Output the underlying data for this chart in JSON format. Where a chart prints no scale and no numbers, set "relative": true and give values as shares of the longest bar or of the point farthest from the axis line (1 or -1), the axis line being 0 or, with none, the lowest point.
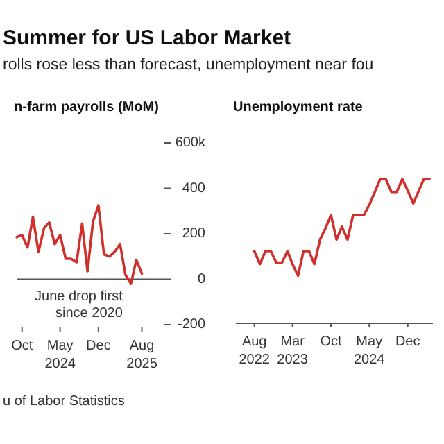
{
  "chart_data": [
    {
      "type": "other",
      "title": "Summer for US Labor Market",
      "subtitle": "rolls rose less than forecast, unemployment near fou",
      "annotations": [
        "u of Labor Statistics"
      ]
    },
    {
      "type": "line",
      "title": "n-farm payrolls (MoM)",
      "x": [
        "2023-09",
        "2023-10",
        "2023-11",
        "2023-12",
        "2024-01",
        "2024-02",
        "2024-03",
        "2024-04",
        "2024-05",
        "2024-06",
        "2024-07",
        "2024-08",
        "2024-09",
        "2024-10",
        "2024-11",
        "2024-12",
        "2025-01",
        "2025-02",
        "2025-03",
        "2025-04",
        "2025-05",
        "2025-06",
        "2025-07",
        "2025-08"
      ],
      "series": [
        {
          "color": "#d0302c",
          "values": [
            185,
            195,
            140,
            275,
            120,
            225,
            250,
            155,
            195,
            90,
            90,
            75,
            245,
            35,
            255,
            325,
            110,
            100,
            120,
            155,
            20,
            -20,
            85,
            25
          ]
        }
      ],
      "xlim": [
        "2023-09-01",
        "2025-12-01"
      ],
      "xticks": [
        {
          "value": "2023-10",
          "label": "Oct"
        },
        {
          "value": "2024-05",
          "label": "May\n2024"
        },
        {
          "value": "2024-12",
          "label": "Dec"
        },
        {
          "value": "2025-08",
          "label": "Aug\n2025"
        }
      ],
      "ylim": [
        -200,
        600
      ],
      "yticks": [
        {
          "value": 600,
          "label": "600k"
        },
        400,
        200,
        0,
        -200
      ],
      "ref_lines": [
        {
          "axis": "y",
          "value": 0
        }
      ],
      "annotations": [
        {
          "text": "June drop first\nsince 2020",
          "x": "2025-06",
          "y": -20
        }
      ]
    },
    {
      "type": "line",
      "title": "Unemployment rate",
      "relative": true,
      "x": [
        "2022-08",
        "2022-09",
        "2022-10",
        "2022-11",
        "2022-12",
        "2023-01",
        "2023-02",
        "2023-03",
        "2023-04",
        "2023-05",
        "2023-06",
        "2023-07",
        "2023-08",
        "2023-09",
        "2023-10",
        "2023-11",
        "2023-12",
        "2024-01",
        "2024-02",
        "2024-03",
        "2024-04",
        "2024-05",
        "2024-06",
        "2024-07",
        "2024-08",
        "2024-09",
        "2024-10",
        "2024-11",
        "2024-12",
        "2025-01",
        "2025-02",
        "2025-03",
        "2025-04"
      ],
      "series": [
        {
          "color": "#d0302c",
          "values": [
            0.5,
            0.41,
            0.5,
            0.5,
            0.42,
            0.42,
            0.5,
            0.41,
            0.33,
            0.5,
            0.5,
            0.41,
            0.58,
            0.66,
            0.75,
            0.58,
            0.67,
            0.58,
            0.75,
            0.75,
            0.75,
            0.82,
            0.91,
            1,
            1,
            0.91,
            0.91,
            1,
            0.92,
            0.83,
            0.92,
            1,
            1
          ]
        }
      ],
      "xlim": [
        "2022-04-20",
        "2025-04-20"
      ],
      "xticks": [
        {
          "value": "2022-08",
          "label": "Aug\n2022"
        },
        {
          "value": "2023-03",
          "label": "Mar\n2023"
        },
        {
          "value": "2023-10",
          "label": "Oct"
        },
        {
          "value": "2024-05",
          "label": "May\n2024"
        },
        {
          "value": "2024-12",
          "label": "Dec"
        }
      ]
    }
  ]
}
